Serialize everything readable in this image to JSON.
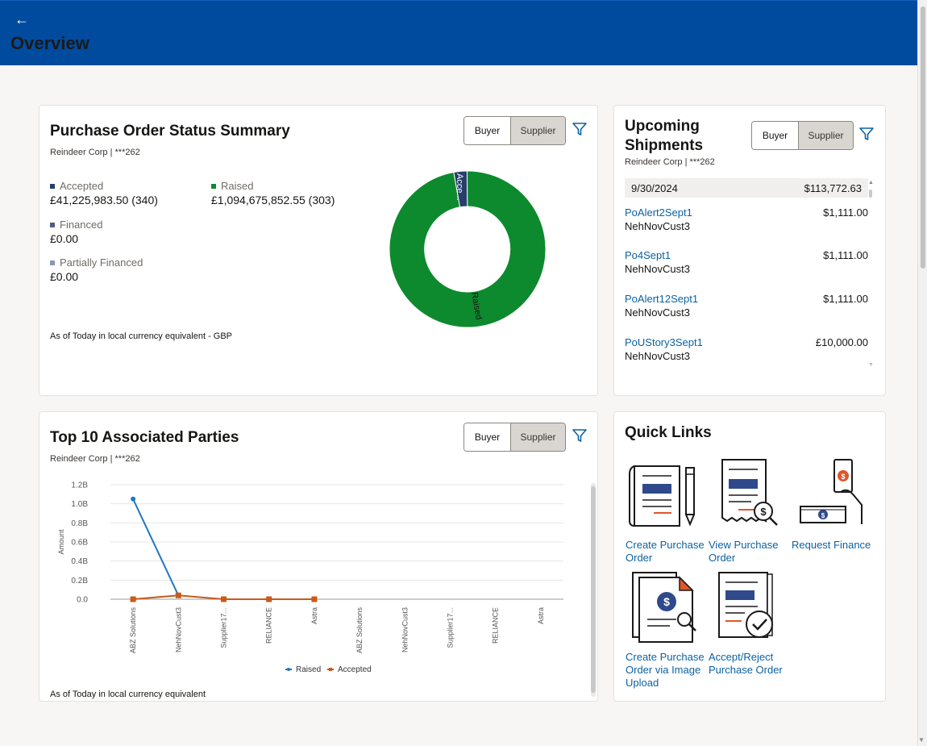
{
  "header": {
    "back_glyph": "←",
    "title": "Overview"
  },
  "colors": {
    "header_bg": "#004b9e",
    "accepted": "#263e6b",
    "raised": "#0d8a2e",
    "financed": "#4e5e86",
    "partially_financed": "#8b97b2",
    "line_raised": "#1f77c4",
    "line_accepted": "#c95a1a",
    "link": "#0b62a3"
  },
  "po_summary": {
    "title": "Purchase Order Status Summary",
    "subtitle": "Reindeer Corp | ***262",
    "toggle": {
      "buyer": "Buyer",
      "supplier": "Supplier",
      "active": "Supplier"
    },
    "filter_icon": "filter-icon",
    "metrics": {
      "accepted": {
        "label": "Accepted",
        "value": "£41,225,983.50  (340)"
      },
      "raised": {
        "label": "Raised",
        "value": "£1,094,675,852.55  (303)"
      },
      "financed": {
        "label": "Financed",
        "value": "£0.00"
      },
      "partially_financed": {
        "label": "Partially Financed",
        "value": "£0.00"
      }
    },
    "donut": {
      "accepted_label": "Acce...",
      "raised_label": "Raised"
    },
    "footnote": "As of Today in local currency equivalent - GBP"
  },
  "shipments": {
    "title_line1": "Upcoming",
    "title_line2": "Shipments",
    "subtitle": "Reindeer Corp | ***262",
    "toggle": {
      "buyer": "Buyer",
      "supplier": "Supplier",
      "active": "Supplier"
    },
    "date_row": {
      "date": "9/30/2024",
      "total": "$113,772.63"
    },
    "items": [
      {
        "po": "PoAlert2Sept1",
        "amount": "$1,111.00",
        "customer": "NehNovCust3"
      },
      {
        "po": "Po4Sept1",
        "amount": "$1,111.00",
        "customer": "NehNovCust3"
      },
      {
        "po": "PoAlert12Sept1",
        "amount": "$1,111.00",
        "customer": "NehNovCust3"
      },
      {
        "po": "PoUStory3Sept1",
        "amount": "£10,000.00",
        "customer": "NehNovCust3"
      }
    ]
  },
  "parties": {
    "title": "Top 10 Associated Parties",
    "subtitle": "Reindeer Corp | ***262",
    "toggle": {
      "buyer": "Buyer",
      "supplier": "Supplier",
      "active": "Supplier"
    },
    "footnote": "As of Today in local currency equivalent"
  },
  "quick_links": {
    "title": "Quick Links",
    "items": [
      {
        "line1": "Create Purchase",
        "line2": "Order",
        "line3": "",
        "icon": "document-pen-icon"
      },
      {
        "line1": "View Purchase",
        "line2": "Order",
        "line3": "",
        "icon": "receipt-search-icon"
      },
      {
        "line1": "Request Finance",
        "line2": "",
        "line3": "",
        "icon": "hand-cash-icon"
      },
      {
        "line1": "Create Purchase",
        "line2": "Order via Image",
        "line3": "Upload",
        "icon": "document-upload-icon"
      },
      {
        "line1": "Accept/Reject",
        "line2": "Purchase Order",
        "line3": "",
        "icon": "document-check-icon"
      }
    ]
  },
  "chart_data": {
    "type": "line",
    "title": "",
    "xlabel": "",
    "ylabel": "Amount",
    "categories": [
      "ABZ Solutions",
      "NehNovCust3",
      "Supplier17...",
      "RELIANCE",
      "Astra",
      "ABZ Solutions",
      "NehNovCust3",
      "Supplier17...",
      "RELIANCE",
      "Astra"
    ],
    "ylim": [
      0,
      1.2
    ],
    "y_unit": "B",
    "y_ticks": [
      "0.0",
      "0.2B",
      "0.4B",
      "0.6B",
      "0.8B",
      "1.0B",
      "1.2B"
    ],
    "series": [
      {
        "name": "Raised",
        "values": [
          1.05,
          0.04,
          null,
          null,
          null,
          null,
          null,
          null,
          null,
          null
        ]
      },
      {
        "name": "Accepted",
        "values": [
          0.0,
          0.04,
          0.0,
          0.0,
          0.0,
          null,
          null,
          null,
          null,
          null
        ]
      }
    ],
    "grid": true,
    "legend": "bottom"
  }
}
